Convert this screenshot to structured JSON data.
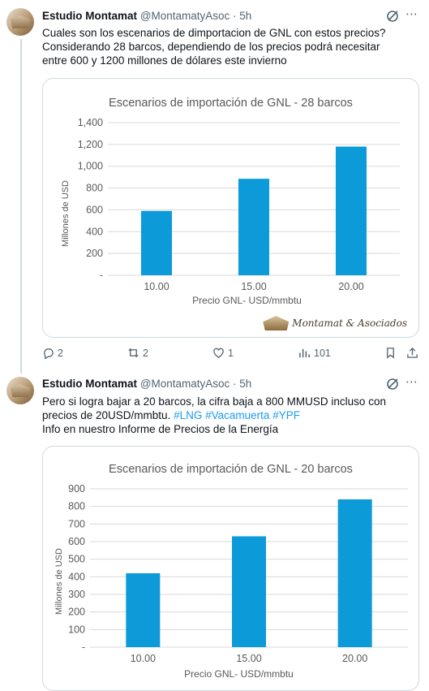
{
  "tweets": [
    {
      "author": "Estudio Montamat",
      "handle": "@MontamatyAsoc",
      "separator": "·",
      "time": "5h",
      "lines": [
        "Cuales son los escenarios de dimportacion de GNL con estos precios?",
        "Considerando 28 barcos, dependiendo de los precios podrá necesitar",
        "entre 600 y 1200 millones de dólares este invierno"
      ],
      "watermark": "Montamat & Asociados",
      "actions": {
        "replies": "2",
        "retweets": "2",
        "likes": "1",
        "views": "101"
      }
    },
    {
      "author": "Estudio Montamat",
      "handle": "@MontamatyAsoc",
      "separator": "·",
      "time": "5h",
      "line1": "Pero si logra bajar a 20 barcos, la cifra baja a 800 MMUSD incluso con",
      "line2_plain": "precios de 20USD/mmbtu. ",
      "hashtags": [
        "#LNG",
        "#Vacamuerta",
        "#YPF"
      ],
      "line3": "Info en nuestro Informe de Precios de la Energía"
    }
  ],
  "chart_data": [
    {
      "type": "bar",
      "title": "Escenarios de importación de GNL - 28 barcos",
      "xlabel": "Precio GNL- USD/mmbtu",
      "ylabel": "Millones de USD",
      "categories": [
        "10.00",
        "15.00",
        "20.00"
      ],
      "values": [
        590,
        885,
        1180
      ],
      "ylim": [
        0,
        1400
      ],
      "yticks": [
        "-",
        "200",
        "400",
        "600",
        "800",
        "1,000",
        "1,200",
        "1,400"
      ],
      "grid": true,
      "bar_color": "#0c9ad9"
    },
    {
      "type": "bar",
      "title": "Escenarios de importación de GNL - 20 barcos",
      "xlabel": "Precio GNL- USD/mmbtu",
      "ylabel": "Millones de USD",
      "categories": [
        "10.00",
        "15.00",
        "20.00"
      ],
      "values": [
        420,
        630,
        840
      ],
      "ylim": [
        0,
        900
      ],
      "yticks": [
        "-",
        "100",
        "200",
        "300",
        "400",
        "500",
        "600",
        "700",
        "800",
        "900"
      ],
      "grid": true,
      "bar_color": "#0c9ad9"
    }
  ]
}
